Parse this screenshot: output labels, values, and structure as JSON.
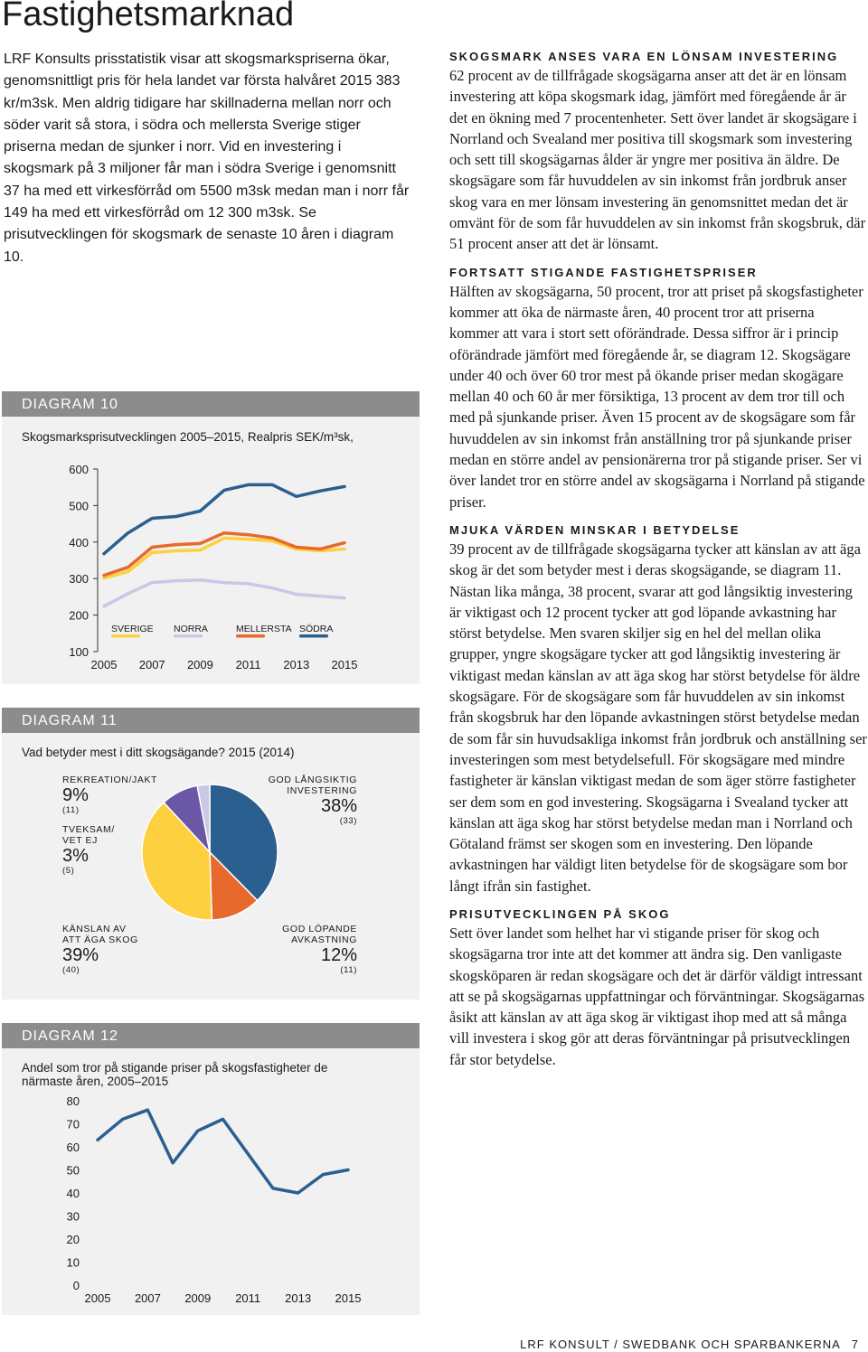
{
  "header": {
    "title": "Fastighetsmarknad"
  },
  "intro": "LRF Konsults prisstatistik visar att skogsmarkspriserna ökar, genomsnittligt pris för hela landet var första halvåret 2015 383 kr/m3sk. Men aldrig tidigare har skillnaderna mellan norr och söder varit så stora, i södra och mellersta Sverige stiger priserna medan de sjunker i norr. Vid en investering i skogsmark på 3 miljoner får man i södra Sverige i genomsnitt 37 ha med ett virkesförråd om 5500 m3sk medan man i norr får 149 ha med ett virkesförråd om 12 300 m3sk. Se prisutvecklingen för skogsmark de senaste 10 åren i diagram 10.",
  "sections": [
    {
      "heading": "SKOGSMARK ANSES VARA EN LÖNSAM INVESTERING",
      "body": "62 procent av de tillfrågade skogsägarna anser att det är en lönsam investering att köpa skogsmark idag, jämfört med föregående år är det en ökning med 7 procentenheter. Sett över landet är skogsägare i Norrland och Svealand mer positiva till skogsmark som investering och sett till skogsägarnas ålder är yngre mer positiva än äldre. De skogsägare som får huvuddelen av sin inkomst från jordbruk anser skog vara en mer lönsam investering än genomsnittet medan det är omvänt för de som får huvuddelen av sin inkomst från skogsbruk, där 51 procent anser att det är lönsamt."
    },
    {
      "heading": "FORTSATT STIGANDE FASTIGHETSPRISER",
      "body": "Hälften av skogsägarna, 50 procent, tror att priset på skogsfastigheter kommer att öka de närmaste åren, 40 procent tror att priserna kommer att vara i stort sett oförändrade. Dessa siffror är i princip oförändrade jämfört med föregående år, se diagram 12. Skogsägare under 40 och över 60 tror mest på ökande priser medan skogägare mellan 40 och 60 år mer försiktiga, 13 procent av dem tror till och med på sjunkande priser. Även 15 procent av de skogsägare som får huvuddelen av sin inkomst från anställning tror på sjunkande priser medan en större andel av pensionärerna tror på stigande priser. Ser vi över landet tror en större andel av skogsägarna i Norrland på stigande priser."
    },
    {
      "heading": "MJUKA VÄRDEN MINSKAR I BETYDELSE",
      "body": "39 procent av de tillfrågade skogsägarna tycker att känslan av att äga skog är det som betyder mest i deras skogsägande, se diagram 11. Nästan lika många, 38 procent, svarar att god långsiktig investering är viktigast och 12 procent tycker att god löpande avkastning har störst betydelse. Men svaren skiljer sig en hel del mellan olika grupper, yngre skogsägare tycker att god långsiktig investering är viktigast medan känslan av att äga skog har störst betydelse för äldre skogsägare. För de skogsägare som får huvuddelen av sin inkomst från skogsbruk har den löpande avkastningen störst betydelse medan de som får sin huvudsakliga inkomst från jordbruk och anställning ser investeringen som mest betydelsefull. För skogsägare med mindre fastigheter är känslan viktigast medan de som äger större fastigheter ser dem som en god investering. Skogsägarna i Svealand tycker att känslan att äga skog har störst betydelse medan man i Norrland och Götaland främst ser skogen som en investering. Den löpande avkastningen har väldigt liten betydelse för de skogsägare som bor långt ifrån sin fastighet."
    },
    {
      "heading": "PRISUTVECKLINGEN PÅ SKOG",
      "body": "Sett över landet som helhet har vi stigande priser för skog och skogsägarna tror inte att det kommer att ändra sig. Den vanligaste skogsköparen är redan skogsägare och det är därför väldigt intressant att se på skogsägarnas uppfattningar och förväntningar. Skogsägarnas åsikt att känslan av att äga skog är viktigast ihop med att så många vill investera i skog gör att deras förväntningar på prisutvecklingen får stor betydelse."
    }
  ],
  "chart_data": [
    {
      "type": "line",
      "label": "DIAGRAM 10",
      "title": "Skogsmarksprisutvecklingen 2005–2015, Realpris SEK/m³sk,",
      "x": [
        2005,
        2006,
        2007,
        2008,
        2009,
        2010,
        2011,
        2012,
        2013,
        2014,
        2015
      ],
      "xlim": [
        2005,
        2015
      ],
      "xticks": [
        2005,
        2007,
        2009,
        2011,
        2013,
        2015
      ],
      "ylim": [
        100,
        600
      ],
      "yticks": [
        100,
        200,
        300,
        400,
        500,
        600
      ],
      "series": [
        {
          "name": "SVERIGE",
          "color": "#fdd03f",
          "values": [
            301,
            319,
            371,
            376,
            378,
            411,
            408,
            403,
            381,
            376,
            381
          ]
        },
        {
          "name": "NORRA",
          "color": "#cac8e6",
          "values": [
            224,
            259,
            289,
            294,
            296,
            289,
            286,
            274,
            257,
            252,
            247
          ]
        },
        {
          "name": "MELLERSTA",
          "color": "#e8692c",
          "values": [
            309,
            331,
            386,
            393,
            396,
            425,
            420,
            411,
            386,
            381,
            398
          ]
        },
        {
          "name": "SÖDRA",
          "color": "#2a5f8f",
          "values": [
            368,
            425,
            465,
            470,
            485,
            542,
            557,
            557,
            525,
            540,
            552
          ]
        }
      ]
    },
    {
      "type": "pie",
      "label": "DIAGRAM 11",
      "title": "Vad betyder mest i ditt skogsägande? 2015 (2014)",
      "categories": [
        "GOD LÅNGSIKTIG INVESTERING",
        "GOD LÖPANDE AVKASTNING",
        "KÄNSLAN AV ATT ÄGA SKOG",
        "REKREATION/JAKT",
        "TVEKSAM/ VET EJ"
      ],
      "values": [
        38,
        12,
        39,
        9,
        3
      ],
      "value_labels": [
        "38%",
        "12%",
        "39%",
        "9%",
        "3%"
      ],
      "previous_values": [
        33,
        11,
        40,
        11,
        5
      ],
      "previous_value_labels": [
        "(33)",
        "(11)",
        "(40)",
        "(11)",
        "(5)"
      ],
      "colors": [
        "#2a5f8f",
        "#e8692c",
        "#fdd03f",
        "#6a58a6",
        "#cac8e6"
      ]
    },
    {
      "type": "line",
      "label": "DIAGRAM 12",
      "title": "Andel som tror på stigande priser på skogsfastigheter de närmaste åren, 2005–2015",
      "x": [
        2005,
        2006,
        2007,
        2008,
        2009,
        2010,
        2011,
        2012,
        2013,
        2014,
        2015
      ],
      "xlim": [
        2005,
        2015
      ],
      "xticks": [
        2005,
        2007,
        2009,
        2011,
        2013,
        2015
      ],
      "ylim": [
        0,
        80
      ],
      "yticks": [
        0,
        10,
        20,
        30,
        40,
        50,
        60,
        70,
        80
      ],
      "values": [
        63,
        72,
        76,
        53,
        67,
        72,
        57,
        42,
        40,
        48,
        50
      ],
      "color": "#2a5f8f"
    }
  ],
  "footer": {
    "publisher": "LRF KONSULT / SWEDBANK OCH SPARBANKERNA",
    "page": 7
  }
}
